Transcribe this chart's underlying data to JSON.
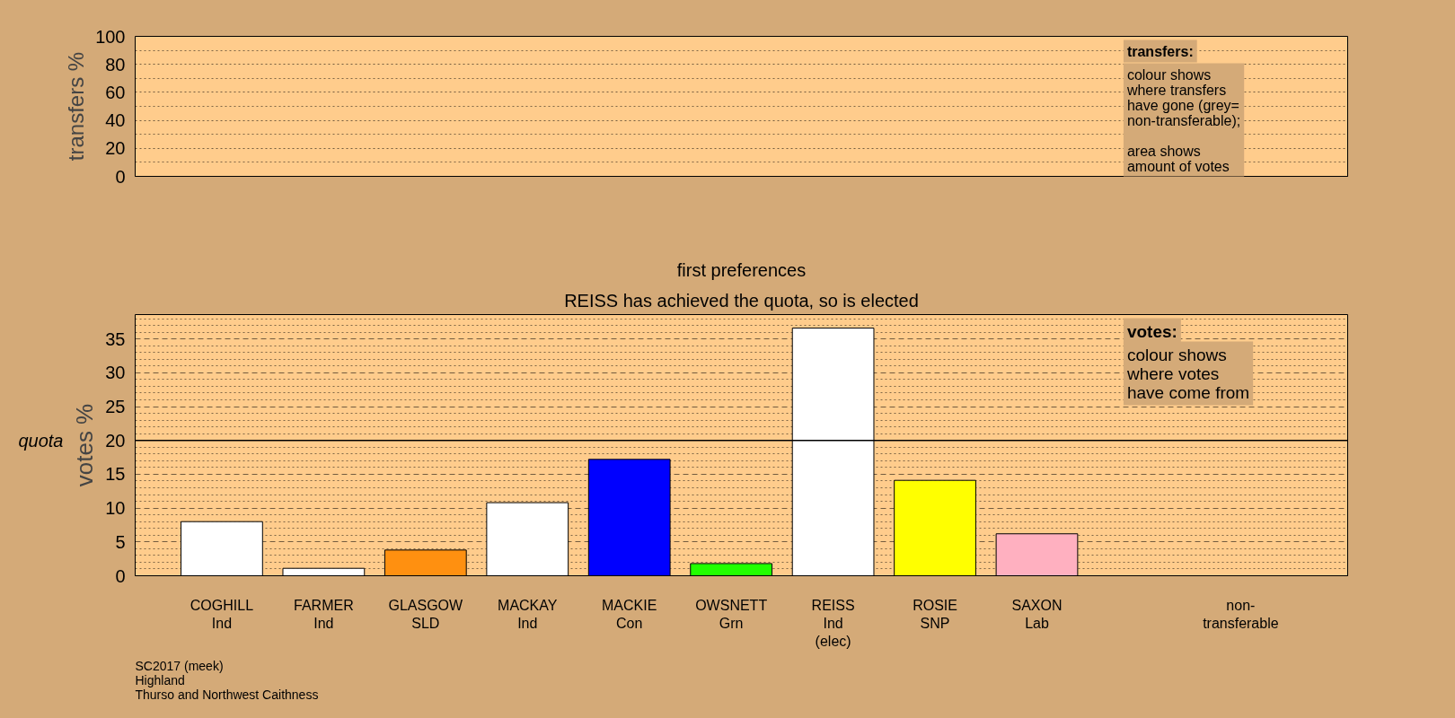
{
  "chart_data": [
    {
      "type": "bar",
      "categories": [
        null,
        null,
        null,
        null,
        null,
        null,
        null,
        null,
        null,
        null,
        null
      ],
      "values": [
        null,
        null,
        null,
        null,
        null,
        null,
        null,
        null,
        null,
        null,
        null
      ],
      "ylim": [
        0,
        100
      ],
      "yticks": [
        0,
        20,
        40,
        60,
        80,
        100
      ],
      "ylabel": "transfers %",
      "grid": "y",
      "annotations": [
        "transfers:",
        "colour shows\nwhere transfers\nhave gone (grey=\nnon-transferable);",
        "area shows\namount of votes"
      ]
    },
    {
      "type": "bar",
      "title": "first preferences",
      "subtitle": "REISS has achieved the quota, so is elected",
      "categories": [
        "COGHILL\nInd",
        "FARMER\nInd",
        "GLASGOW\nSLD",
        "MACKAY\nInd",
        "MACKIE\nCon",
        "OWSNETT\nGrn",
        "REISS\nInd\n(elec)",
        "ROSIE\nSNP",
        "SAXON\nLab",
        null,
        "non-\ntransferable"
      ],
      "values": [
        8.0,
        1.1,
        3.8,
        10.8,
        17.2,
        1.8,
        36.6,
        14.1,
        6.2,
        null,
        null
      ],
      "colors": [
        "#ffffff",
        "#ffffff",
        "#ff9010",
        "#ffffff",
        "#0000ff",
        "#22ff00",
        "#ffffff",
        "#ffff00",
        "#ffb0c0",
        "#ffffff",
        "#ffffff"
      ],
      "ylim": [
        0,
        38.6
      ],
      "yticks": [
        0,
        5,
        10,
        15,
        20,
        25,
        30,
        35
      ],
      "ylabel": "votes %",
      "grid": "y",
      "ref_lines": [
        {
          "axis": "y",
          "value": 20,
          "label": "quota",
          "color": "#000000"
        }
      ],
      "annotations": [
        "votes:",
        "colour shows\nwhere votes\nhave come from",
        "SC2017 (meek)\nHighland\nThurso and Northwest Caithness"
      ]
    }
  ]
}
